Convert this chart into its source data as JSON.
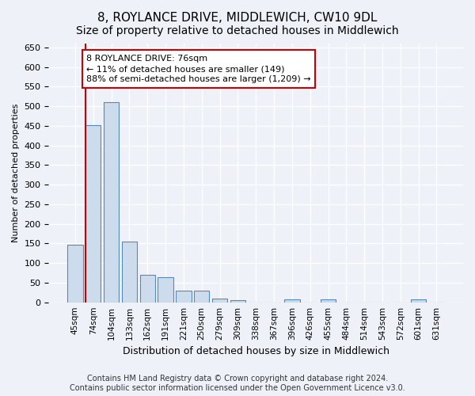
{
  "title": "8, ROYLANCE DRIVE, MIDDLEWICH, CW10 9DL",
  "subtitle": "Size of property relative to detached houses in Middlewich",
  "xlabel": "Distribution of detached houses by size in Middlewich",
  "ylabel": "Number of detached properties",
  "categories": [
    "45sqm",
    "74sqm",
    "104sqm",
    "133sqm",
    "162sqm",
    "191sqm",
    "221sqm",
    "250sqm",
    "279sqm",
    "309sqm",
    "338sqm",
    "367sqm",
    "396sqm",
    "426sqm",
    "455sqm",
    "484sqm",
    "514sqm",
    "543sqm",
    "572sqm",
    "601sqm",
    "631sqm"
  ],
  "values": [
    147,
    452,
    510,
    155,
    70,
    65,
    30,
    30,
    10,
    6,
    0,
    0,
    8,
    0,
    8,
    0,
    0,
    0,
    0,
    8,
    0
  ],
  "bar_color": "#ccdcec",
  "bar_edge_color": "#5588bb",
  "vline_color": "#cc0000",
  "vline_x_index": 1.5,
  "annotation_text": "8 ROYLANCE DRIVE: 76sqm\n← 11% of detached houses are smaller (149)\n88% of semi-detached houses are larger (1,209) →",
  "annotation_box_facecolor": "#ffffff",
  "annotation_box_edgecolor": "#cc0000",
  "ylim": [
    0,
    660
  ],
  "yticks": [
    0,
    50,
    100,
    150,
    200,
    250,
    300,
    350,
    400,
    450,
    500,
    550,
    600,
    650
  ],
  "background_color": "#eef2f8",
  "plot_bg_color": "#eef2f8",
  "grid_color": "#ffffff",
  "footer": "Contains HM Land Registry data © Crown copyright and database right 2024.\nContains public sector information licensed under the Open Government Licence v3.0.",
  "title_fontsize": 11,
  "subtitle_fontsize": 10,
  "ylabel_fontsize": 8,
  "xlabel_fontsize": 9,
  "tick_fontsize": 8,
  "xtick_fontsize": 7.5,
  "footer_fontsize": 7,
  "annotation_fontsize": 8
}
